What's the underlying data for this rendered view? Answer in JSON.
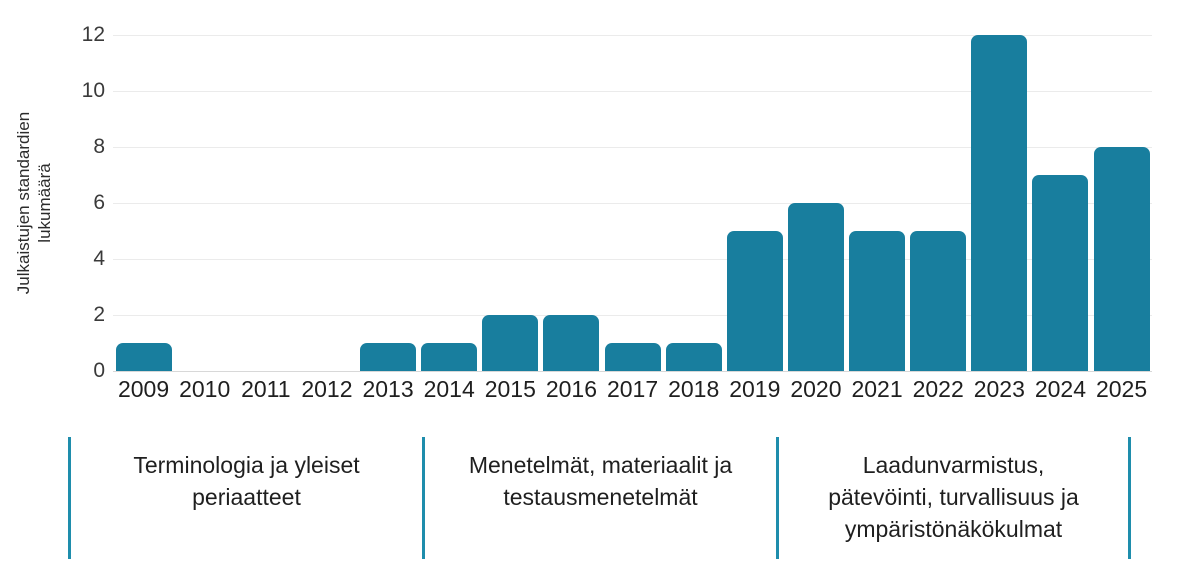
{
  "chart_data": {
    "type": "bar",
    "title": "",
    "categories": [
      "2009",
      "2010",
      "2011",
      "2012",
      "2013",
      "2014",
      "2015",
      "2016",
      "2017",
      "2018",
      "2019",
      "2020",
      "2021",
      "2022",
      "2023",
      "2024",
      "2025"
    ],
    "values": [
      1,
      0,
      0,
      0,
      1,
      1,
      2,
      2,
      1,
      1,
      5,
      6,
      5,
      5,
      12,
      7,
      8
    ],
    "ylabel": "Julkaistujen standardien lukumäärä",
    "ylabel_lines": [
      "Julkaistujen standardien",
      "lukumäärä"
    ],
    "xlabel": "",
    "yticks": [
      0,
      2,
      4,
      6,
      8,
      10,
      12
    ],
    "ylim": [
      0,
      12
    ],
    "grid": true,
    "legend_position": "none",
    "bar_color": "#187e9e"
  },
  "category_groups": {
    "divider_color": "#1e8dac",
    "sections": [
      {
        "label": "Terminologia ja yleiset periaatteet",
        "lines": [
          "Terminologia ja yleiset",
          "periaatteet"
        ]
      },
      {
        "label": "Menetelmät, materiaalit ja testausmenetelmät",
        "lines": [
          "Menetelmät, materiaalit ja",
          "testausmenetelmät"
        ]
      },
      {
        "label": "Laadunvarmistus, pätevöinti, turvallisuus ja ympäristönäkökulmat",
        "lines": [
          "Laadunvarmistus,",
          "pätevöinti, turvallisuus ja",
          "ympäristönäkökulmat"
        ]
      }
    ]
  }
}
